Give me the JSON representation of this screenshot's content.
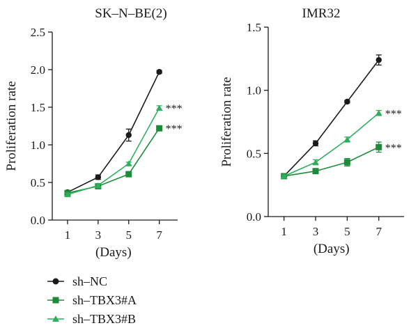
{
  "legend": [
    {
      "label": "sh–NC",
      "color": "#1a1a1a",
      "marker": "circle"
    },
    {
      "label": "sh–TBX3#A",
      "color": "#1e8a3c",
      "marker": "square"
    },
    {
      "label": "sh–TBX3#B",
      "color": "#2fae5e",
      "marker": "triangle"
    }
  ],
  "chart_data": [
    {
      "type": "line",
      "title": "SK–N–BE(2)",
      "xlabel": "(Days)",
      "ylabel": "Proliferation rate",
      "x": [
        1,
        3,
        5,
        7
      ],
      "ylim": [
        0.0,
        2.5
      ],
      "yticks": [
        "0.0",
        "0.5",
        "1.0",
        "1.5",
        "2.0",
        "2.5"
      ],
      "xticks": [
        "1",
        "3",
        "5",
        "7"
      ],
      "series": [
        {
          "name": "sh–NC",
          "values": [
            0.37,
            0.57,
            1.13,
            1.97
          ],
          "errors": [
            0.02,
            0.03,
            0.08,
            0.02
          ]
        },
        {
          "name": "sh–TBX3#A",
          "values": [
            0.36,
            0.45,
            0.61,
            1.22
          ],
          "errors": [
            0.02,
            0.02,
            0.03,
            0.03
          ]
        },
        {
          "name": "sh–TBX3#B",
          "values": [
            0.34,
            0.46,
            0.75,
            1.49
          ],
          "errors": [
            0.02,
            0.02,
            0.02,
            0.03
          ]
        }
      ],
      "annotations": [
        {
          "series": "sh–TBX3#B",
          "text": "***"
        },
        {
          "series": "sh–TBX3#A",
          "text": "***"
        }
      ]
    },
    {
      "type": "line",
      "title": "IMR32",
      "xlabel": "(Days)",
      "ylabel": "Proliferation rate",
      "x": [
        1,
        3,
        5,
        7
      ],
      "ylim": [
        0.0,
        1.5
      ],
      "yticks": [
        "0.0",
        "0.5",
        "1.0",
        "1.5"
      ],
      "xticks": [
        "1",
        "3",
        "5",
        "7"
      ],
      "series": [
        {
          "name": "sh–NC",
          "values": [
            0.32,
            0.58,
            0.91,
            1.24
          ],
          "errors": [
            0.01,
            0.02,
            0.01,
            0.04
          ]
        },
        {
          "name": "sh–TBX3#A",
          "values": [
            0.32,
            0.36,
            0.43,
            0.55
          ],
          "errors": [
            0.01,
            0.01,
            0.03,
            0.04
          ]
        },
        {
          "name": "sh–TBX3#B",
          "values": [
            0.32,
            0.43,
            0.61,
            0.82
          ],
          "errors": [
            0.01,
            0.02,
            0.02,
            0.02
          ]
        }
      ],
      "annotations": [
        {
          "series": "sh–TBX3#B",
          "text": "***"
        },
        {
          "series": "sh–TBX3#A",
          "text": "***"
        }
      ]
    }
  ]
}
